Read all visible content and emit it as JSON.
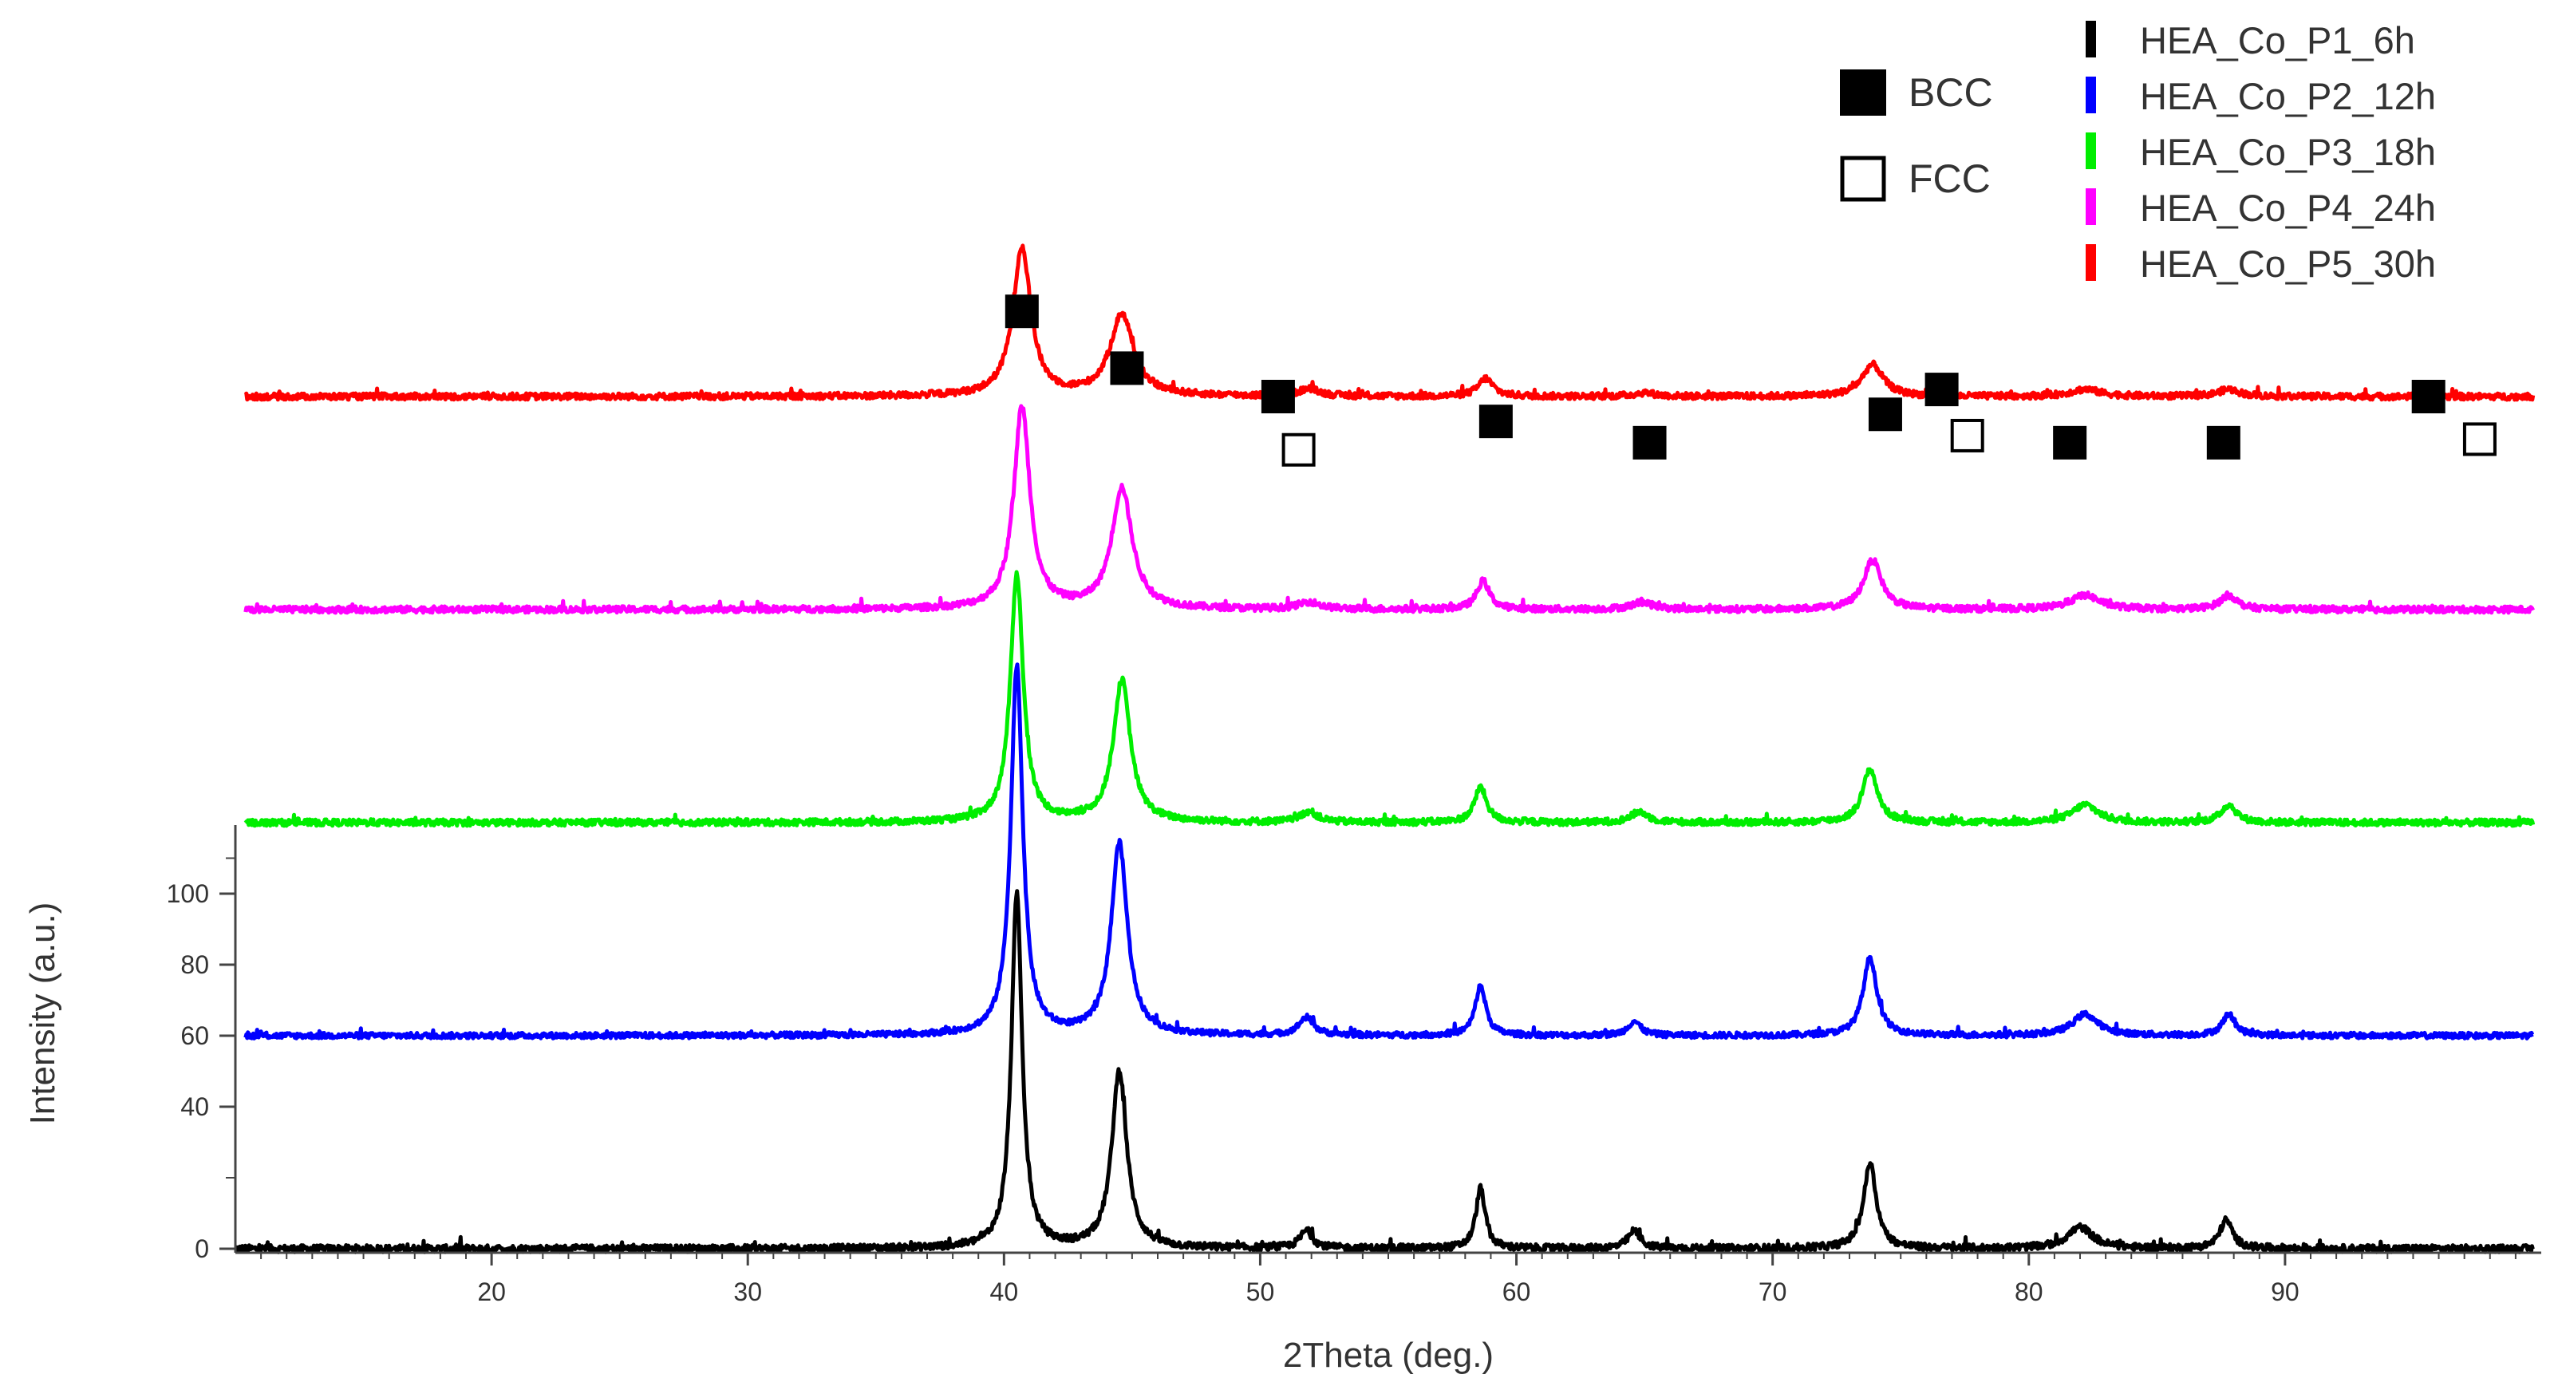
{
  "chart_data": {
    "type": "line",
    "xlabel": "2Theta (deg.)",
    "ylabel": "Intensity (a.u.)",
    "xlim": [
      10,
      100
    ],
    "ylim": [
      -5,
      115
    ],
    "x_ticks": [
      20,
      30,
      40,
      50,
      60,
      70,
      80,
      90
    ],
    "y_ticks": [
      0,
      40,
      60,
      80,
      100
    ],
    "legend_placement": "top-right",
    "series": [
      {
        "name": "HEA_Co_P1_6h",
        "color": "#000000",
        "offset": 0,
        "noise": 1.0,
        "peaks": [
          [
            40.5,
            100,
            0.25
          ],
          [
            44.5,
            50,
            0.35
          ],
          [
            51.8,
            5,
            0.3
          ],
          [
            58.6,
            17,
            0.22
          ],
          [
            64.6,
            5,
            0.3
          ],
          [
            73.8,
            24,
            0.3
          ],
          [
            82.0,
            6,
            0.6
          ],
          [
            87.7,
            8,
            0.3
          ]
        ]
      },
      {
        "name": "HEA_Co_P2_12h",
        "color": "#0000ff",
        "offset": 60,
        "noise": 0.8,
        "peaks": [
          [
            40.5,
            104,
            0.28
          ],
          [
            44.5,
            54,
            0.38
          ],
          [
            51.8,
            5,
            0.35
          ],
          [
            58.6,
            14,
            0.25
          ],
          [
            64.6,
            4,
            0.3
          ],
          [
            73.8,
            22,
            0.32
          ],
          [
            82.2,
            6,
            0.6
          ],
          [
            87.8,
            6,
            0.3
          ]
        ]
      },
      {
        "name": "HEA_Co_P3_18h",
        "color": "#00ee00",
        "offset": 120,
        "noise": 0.9,
        "peaks": [
          [
            40.5,
            70,
            0.3
          ],
          [
            44.6,
            40,
            0.4
          ],
          [
            51.9,
            3,
            0.4
          ],
          [
            58.6,
            10,
            0.28
          ],
          [
            64.8,
            3,
            0.4
          ],
          [
            73.8,
            15,
            0.35
          ],
          [
            82.2,
            5,
            0.6
          ],
          [
            87.8,
            5,
            0.35
          ]
        ]
      },
      {
        "name": "HEA_Co_P4_24h",
        "color": "#ff00ff",
        "offset": 180,
        "noise": 0.9,
        "peaks": [
          [
            40.7,
            57,
            0.38
          ],
          [
            44.6,
            34,
            0.48
          ],
          [
            51.9,
            2,
            0.5
          ],
          [
            58.7,
            8,
            0.3
          ],
          [
            64.9,
            2,
            0.5
          ],
          [
            73.9,
            14,
            0.42
          ],
          [
            82.2,
            4,
            0.7
          ],
          [
            87.8,
            4,
            0.4
          ]
        ]
      },
      {
        "name": "HEA_Co_P5_30h",
        "color": "#ff0000",
        "offset": 240,
        "noise": 0.9,
        "peaks": [
          [
            40.7,
            42,
            0.42
          ],
          [
            44.6,
            23,
            0.55
          ],
          [
            51.9,
            2,
            0.5
          ],
          [
            58.8,
            5,
            0.35
          ],
          [
            65.0,
            1,
            0.5
          ],
          [
            73.9,
            9,
            0.5
          ],
          [
            82.2,
            2,
            0.7
          ],
          [
            87.8,
            2,
            0.5
          ]
        ]
      }
    ],
    "phase_markers": {
      "BCC": [
        [
          40.7,
          264
        ],
        [
          44.8,
          248
        ],
        [
          50.7,
          240
        ],
        [
          59.2,
          233
        ],
        [
          65.2,
          227
        ],
        [
          74.4,
          235
        ],
        [
          76.6,
          242
        ],
        [
          81.6,
          227
        ],
        [
          87.6,
          227
        ],
        [
          95.6,
          240
        ]
      ],
      "FCC": [
        [
          51.5,
          225
        ],
        [
          77.6,
          229
        ],
        [
          97.6,
          228
        ]
      ]
    },
    "phase_legend": [
      {
        "symbol": "filled-square",
        "label": "BCC"
      },
      {
        "symbol": "open-square",
        "label": "FCC"
      }
    ]
  }
}
